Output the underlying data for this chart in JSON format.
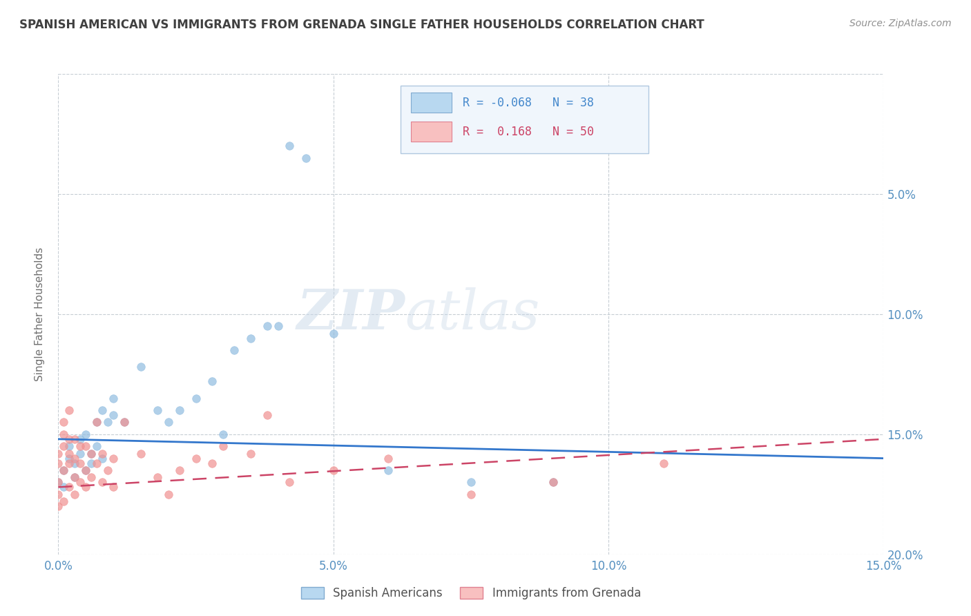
{
  "title": "SPANISH AMERICAN VS IMMIGRANTS FROM GRENADA SINGLE FATHER HOUSEHOLDS CORRELATION CHART",
  "source": "Source: ZipAtlas.com",
  "ylabel": "Single Father Households",
  "xlim": [
    0.0,
    0.15
  ],
  "ylim": [
    0.0,
    0.2
  ],
  "xticks": [
    0.0,
    0.05,
    0.1,
    0.15
  ],
  "yticks": [
    0.0,
    0.05,
    0.1,
    0.15,
    0.2
  ],
  "xticklabels": [
    "0.0%",
    "5.0%",
    "10.0%",
    "15.0%"
  ],
  "yticklabels_right": [
    "20.0%",
    "15.0%",
    "10.0%",
    "5.0%",
    ""
  ],
  "watermark_zip": "ZIP",
  "watermark_atlas": "atlas",
  "background_color": "#ffffff",
  "grid_color": "#c0c8d0",
  "title_color": "#404040",
  "source_color": "#909090",
  "ylabel_color": "#707070",
  "axis_label_color": "#5590c0",
  "legend_box_color": "#e8f0f8",
  "legend_box_edge": "#b0c8e0",
  "series": [
    {
      "name": "Spanish Americans",
      "dot_color": "#90bce0",
      "dot_edge": "#6aa0cc",
      "legend_fill": "#b8d8f0",
      "legend_edge": "#80aad0",
      "R_text": "R = -0.068",
      "N_text": "N = 38",
      "text_color": "#4488cc",
      "points": [
        [
          0.0,
          0.03
        ],
        [
          0.001,
          0.035
        ],
        [
          0.001,
          0.028
        ],
        [
          0.002,
          0.04
        ],
        [
          0.002,
          0.045
        ],
        [
          0.003,
          0.032
        ],
        [
          0.003,
          0.038
        ],
        [
          0.004,
          0.042
        ],
        [
          0.004,
          0.048
        ],
        [
          0.005,
          0.035
        ],
        [
          0.005,
          0.05
        ],
        [
          0.006,
          0.038
        ],
        [
          0.006,
          0.042
        ],
        [
          0.007,
          0.045
        ],
        [
          0.007,
          0.055
        ],
        [
          0.008,
          0.04
        ],
        [
          0.008,
          0.06
        ],
        [
          0.009,
          0.055
        ],
        [
          0.01,
          0.065
        ],
        [
          0.01,
          0.058
        ],
        [
          0.012,
          0.055
        ],
        [
          0.015,
          0.078
        ],
        [
          0.018,
          0.06
        ],
        [
          0.02,
          0.055
        ],
        [
          0.022,
          0.06
        ],
        [
          0.025,
          0.065
        ],
        [
          0.028,
          0.072
        ],
        [
          0.03,
          0.05
        ],
        [
          0.032,
          0.085
        ],
        [
          0.035,
          0.09
        ],
        [
          0.038,
          0.095
        ],
        [
          0.04,
          0.095
        ],
        [
          0.042,
          0.17
        ],
        [
          0.045,
          0.165
        ],
        [
          0.05,
          0.092
        ],
        [
          0.06,
          0.035
        ],
        [
          0.075,
          0.03
        ],
        [
          0.09,
          0.03
        ]
      ],
      "trend_x": [
        0.0,
        0.15
      ],
      "trend_y": [
        0.048,
        0.04
      ],
      "trend_color": "#3377cc",
      "trend_style": "solid",
      "trend_lw": 2.0
    },
    {
      "name": "Immigrants from Grenada",
      "dot_color": "#f09090",
      "dot_edge": "#d06070",
      "legend_fill": "#f8c0c0",
      "legend_edge": "#e08090",
      "R_text": "R =  0.168",
      "N_text": "N = 50",
      "text_color": "#cc4466",
      "points": [
        [
          0.0,
          0.02
        ],
        [
          0.0,
          0.025
        ],
        [
          0.0,
          0.03
        ],
        [
          0.0,
          0.038
        ],
        [
          0.0,
          0.042
        ],
        [
          0.001,
          0.022
        ],
        [
          0.001,
          0.035
        ],
        [
          0.001,
          0.045
        ],
        [
          0.001,
          0.05
        ],
        [
          0.001,
          0.055
        ],
        [
          0.002,
          0.028
        ],
        [
          0.002,
          0.038
        ],
        [
          0.002,
          0.042
        ],
        [
          0.002,
          0.048
        ],
        [
          0.002,
          0.06
        ],
        [
          0.003,
          0.025
        ],
        [
          0.003,
          0.032
        ],
        [
          0.003,
          0.04
        ],
        [
          0.003,
          0.048
        ],
        [
          0.004,
          0.03
        ],
        [
          0.004,
          0.038
        ],
        [
          0.004,
          0.045
        ],
        [
          0.005,
          0.028
        ],
        [
          0.005,
          0.035
        ],
        [
          0.005,
          0.045
        ],
        [
          0.006,
          0.032
        ],
        [
          0.006,
          0.042
        ],
        [
          0.007,
          0.038
        ],
        [
          0.007,
          0.055
        ],
        [
          0.008,
          0.03
        ],
        [
          0.008,
          0.042
        ],
        [
          0.009,
          0.035
        ],
        [
          0.01,
          0.028
        ],
        [
          0.01,
          0.04
        ],
        [
          0.012,
          0.055
        ],
        [
          0.015,
          0.042
        ],
        [
          0.018,
          0.032
        ],
        [
          0.02,
          0.025
        ],
        [
          0.022,
          0.035
        ],
        [
          0.025,
          0.04
        ],
        [
          0.028,
          0.038
        ],
        [
          0.03,
          0.045
        ],
        [
          0.035,
          0.042
        ],
        [
          0.038,
          0.058
        ],
        [
          0.042,
          0.03
        ],
        [
          0.05,
          0.035
        ],
        [
          0.06,
          0.04
        ],
        [
          0.075,
          0.025
        ],
        [
          0.09,
          0.03
        ],
        [
          0.11,
          0.038
        ]
      ],
      "trend_x": [
        0.0,
        0.15
      ],
      "trend_y": [
        0.028,
        0.048
      ],
      "trend_color": "#cc4466",
      "trend_style": "dashed",
      "trend_lw": 1.8
    }
  ]
}
